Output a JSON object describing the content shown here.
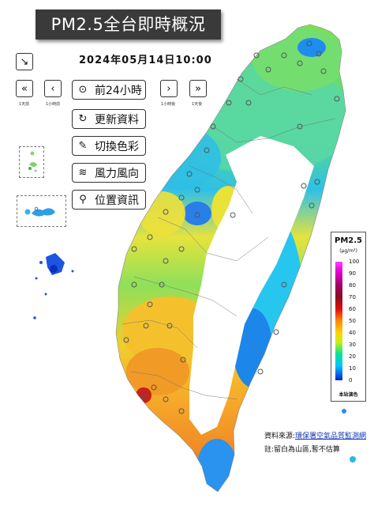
{
  "header": {
    "title": "PM2.5全台即時概況",
    "timestamp": "2024年05月14日10:00"
  },
  "step_labels": {
    "first": "1天前",
    "prev": "1小時前",
    "next": "1小時後",
    "last": "1天後"
  },
  "menu": {
    "back24": "前24小時",
    "refresh": "更新資料",
    "color": "切換色彩",
    "wind": "風力風向",
    "location": "位置資訊"
  },
  "legend": {
    "title": "PM2.5",
    "unit": "(μg/m³)",
    "ticks": [
      "100",
      "90",
      "80",
      "70",
      "60",
      "50",
      "40",
      "30",
      "20",
      "10",
      "0"
    ],
    "station_note": "本站演色"
  },
  "footer": {
    "source_prefix": "資料來源:",
    "source_link": "環保署空氣品質監測網",
    "note": "註:留白為山區,暫不估算"
  },
  "colors": {
    "title_bg": "#3a3a3a",
    "link": "#1536b8"
  }
}
